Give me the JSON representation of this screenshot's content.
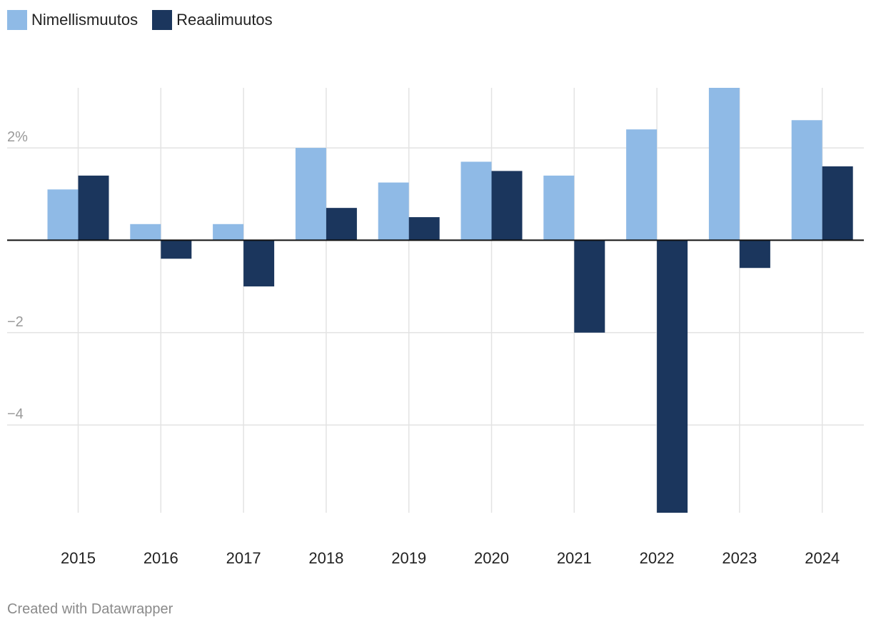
{
  "chart_data": {
    "type": "bar",
    "title": "",
    "xlabel": "",
    "ylabel": "",
    "categories": [
      "2015",
      "2016",
      "2017",
      "2018",
      "2019",
      "2020",
      "2021",
      "2022",
      "2023",
      "2024"
    ],
    "series": [
      {
        "name": "Nimellismuutos",
        "color": "#8fbae6",
        "values": [
          1.1,
          0.35,
          0.35,
          2.0,
          1.25,
          1.7,
          1.4,
          2.4,
          3.3,
          2.6
        ]
      },
      {
        "name": "Reaalimuutos",
        "color": "#1b365d",
        "values": [
          1.4,
          -0.4,
          -1.0,
          0.7,
          0.5,
          1.5,
          -2.0,
          -5.9,
          -0.6,
          1.6
        ]
      }
    ],
    "ylim": [
      -5.9,
      3.3
    ],
    "yticks": [
      {
        "value": 2,
        "label": "2%"
      },
      {
        "value": -2,
        "label": "−2"
      },
      {
        "value": -4,
        "label": "−4"
      }
    ],
    "grid": true,
    "legend": "top-left"
  },
  "footer": {
    "credit": "Created with Datawrapper"
  }
}
